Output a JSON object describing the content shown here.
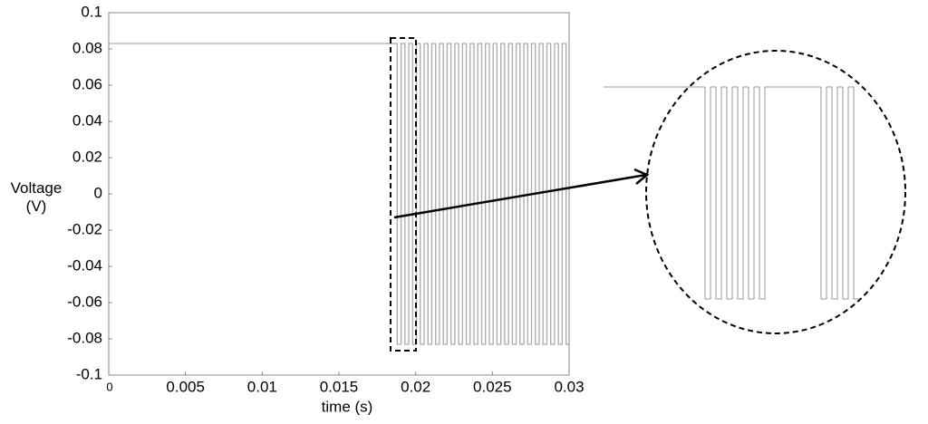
{
  "chart_data": {
    "type": "line",
    "xlabel": "time (s)",
    "ylabel": "Voltage (V)",
    "xlim": [
      0,
      0.03
    ],
    "ylim": [
      -0.1,
      0.1
    ],
    "xticks": [
      0,
      0.005,
      0.01,
      0.015,
      0.02,
      0.025,
      0.03
    ],
    "yticks": [
      -0.1,
      -0.08,
      -0.06,
      -0.04,
      -0.02,
      0,
      0.02,
      0.04,
      0.06,
      0.08,
      0.1
    ],
    "grid": false,
    "series": [
      {
        "color": "#aaaaaa",
        "x": [
          0,
          0.0188,
          0.0188,
          0.01905,
          0.01905,
          0.0193,
          0.0193,
          0.01955,
          0.01955,
          0.0198,
          0.0198,
          0.02005,
          0.02005,
          0.0203,
          0.0203,
          0.02055,
          0.02055,
          0.0208,
          0.0208,
          0.02105,
          0.02105,
          0.0213,
          0.0213,
          0.02155,
          0.02155,
          0.0218,
          0.0218,
          0.02205,
          0.02205,
          0.0223,
          0.0223,
          0.02255,
          0.02255,
          0.0228,
          0.0228,
          0.02305,
          0.02305,
          0.0233,
          0.0233,
          0.02355,
          0.02355,
          0.0238,
          0.0238,
          0.02405,
          0.02405,
          0.0243,
          0.0243,
          0.02455,
          0.02455,
          0.0248,
          0.0248,
          0.02505,
          0.02505,
          0.0253,
          0.0253,
          0.02555,
          0.02555,
          0.0258,
          0.0258,
          0.02605,
          0.02605,
          0.0263,
          0.0263,
          0.02655,
          0.02655,
          0.0268,
          0.0268,
          0.02705,
          0.02705,
          0.0273,
          0.0273,
          0.02755,
          0.02755,
          0.0278,
          0.0278,
          0.02805,
          0.02805,
          0.0283,
          0.0283,
          0.02855,
          0.02855,
          0.0288,
          0.0288,
          0.02905,
          0.02905,
          0.0293,
          0.0293,
          0.02955,
          0.02955,
          0.0298,
          0.0298,
          0.03
        ],
        "values": [
          0.083,
          0.083,
          -0.083,
          -0.083,
          0.083,
          0.083,
          -0.083,
          -0.083,
          0.083,
          0.083,
          -0.083,
          -0.083,
          0.083,
          0.083,
          -0.083,
          -0.083,
          0.083,
          0.083,
          -0.083,
          -0.083,
          0.083,
          0.083,
          -0.083,
          -0.083,
          0.083,
          0.083,
          -0.083,
          -0.083,
          0.083,
          0.083,
          -0.083,
          -0.083,
          0.083,
          0.083,
          -0.083,
          -0.083,
          0.083,
          0.083,
          -0.083,
          -0.083,
          0.083,
          0.083,
          -0.083,
          -0.083,
          0.083,
          0.083,
          -0.083,
          -0.083,
          0.083,
          0.083,
          -0.083,
          -0.083,
          0.083,
          0.083,
          -0.083,
          -0.083,
          0.083,
          0.083,
          -0.083,
          -0.083,
          0.083,
          0.083,
          -0.083,
          -0.083,
          0.083,
          0.083,
          -0.083,
          -0.083,
          0.083,
          0.083,
          -0.083,
          -0.083,
          0.083,
          0.083,
          -0.083,
          -0.083,
          0.083,
          0.083,
          -0.083,
          -0.083,
          0.083,
          0.083,
          -0.083,
          -0.083,
          0.083,
          0.083,
          -0.083,
          -0.083,
          0.083,
          0.083,
          -0.083,
          -0.083
        ]
      }
    ]
  }
}
